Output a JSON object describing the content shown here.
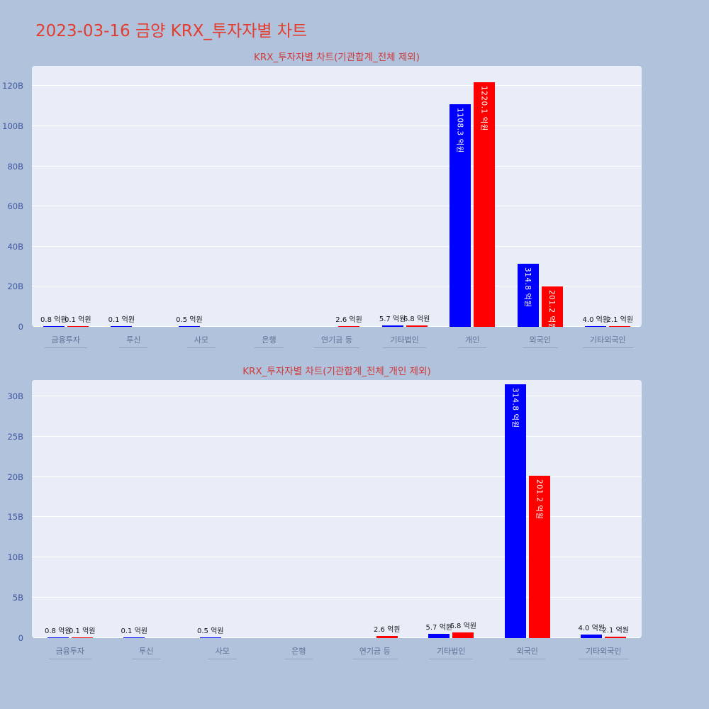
{
  "page": {
    "title": "2023-03-16 금양 KRX_투자자별 차트"
  },
  "colors": {
    "background": "#b1c2dc",
    "panel": "#e9edf7",
    "grid": "#ffffff",
    "page_title": "#e43c2e",
    "chart_title": "#d03b3b",
    "tick_label": "#3f569e",
    "category_label": "#5f7096",
    "category_underline": "#93a3c0",
    "value_label": "#15161c",
    "bar_blue": "#0000ff",
    "bar_red": "#ff0000",
    "bar_inner_label": "#ffffff"
  },
  "chart_data": [
    {
      "type": "bar",
      "title": "KRX_투자자별 차트(기관합계_전체 제외)",
      "value_unit": "억원",
      "axis_unit": "B",
      "eokwon_per_axis_unit": 10,
      "grid": true,
      "legend": false,
      "categories": [
        "금융투자",
        "투신",
        "사모",
        "은행",
        "연기금 등",
        "기타법인",
        "개인",
        "외국인",
        "기타외국인"
      ],
      "series": [
        {
          "name": "blue",
          "color": "#0000ff",
          "values": [
            0.8,
            0.1,
            0.5,
            0,
            0,
            5.7,
            1108.3,
            314.8,
            4.0
          ],
          "labels": [
            "0.8 억원",
            "0.1 억원",
            "0.5 억원",
            "",
            "",
            "5.7 억원",
            "1108.3 억원",
            "314.8 억원",
            "4.0 억원"
          ]
        },
        {
          "name": "red",
          "color": "#ff0000",
          "values": [
            0.1,
            0,
            0,
            0,
            2.6,
            6.8,
            1220.1,
            201.2,
            2.1
          ],
          "labels": [
            "0.1 억원",
            "",
            "",
            "",
            "2.6 억원",
            "6.8 억원",
            "1220.1 억원",
            "201.2 억원",
            "2.1 억원"
          ]
        }
      ],
      "ytick_values": [
        0,
        20,
        40,
        60,
        80,
        100,
        120
      ],
      "ytick_labels": [
        "0",
        "20B",
        "40B",
        "60B",
        "80B",
        "100B",
        "120B"
      ],
      "ylim": [
        0,
        130
      ]
    },
    {
      "type": "bar",
      "title": "KRX_투자자별 차트(기관합계_전체_개인 제외)",
      "value_unit": "억원",
      "axis_unit": "B",
      "eokwon_per_axis_unit": 10,
      "grid": true,
      "legend": false,
      "categories": [
        "금융투자",
        "투신",
        "사모",
        "은행",
        "연기금 등",
        "기타법인",
        "외국인",
        "기타외국인"
      ],
      "series": [
        {
          "name": "blue",
          "color": "#0000ff",
          "values": [
            0.8,
            0.1,
            0.5,
            0,
            0,
            5.7,
            314.8,
            4.0
          ],
          "labels": [
            "0.8 억원",
            "0.1 억원",
            "0.5 억원",
            "",
            "",
            "5.7 억원",
            "314.8 억원",
            "4.0 억원"
          ]
        },
        {
          "name": "red",
          "color": "#ff0000",
          "values": [
            0.1,
            0,
            0,
            0,
            2.6,
            6.8,
            201.2,
            2.1
          ],
          "labels": [
            "0.1 억원",
            "",
            "",
            "",
            "2.6 억원",
            "6.8 억원",
            "201.2 억원",
            "2.1 억원"
          ]
        }
      ],
      "ytick_values": [
        0,
        5,
        10,
        15,
        20,
        25,
        30
      ],
      "ytick_labels": [
        "0",
        "5B",
        "10B",
        "15B",
        "20B",
        "25B",
        "30B"
      ],
      "ylim": [
        0,
        32
      ]
    }
  ]
}
